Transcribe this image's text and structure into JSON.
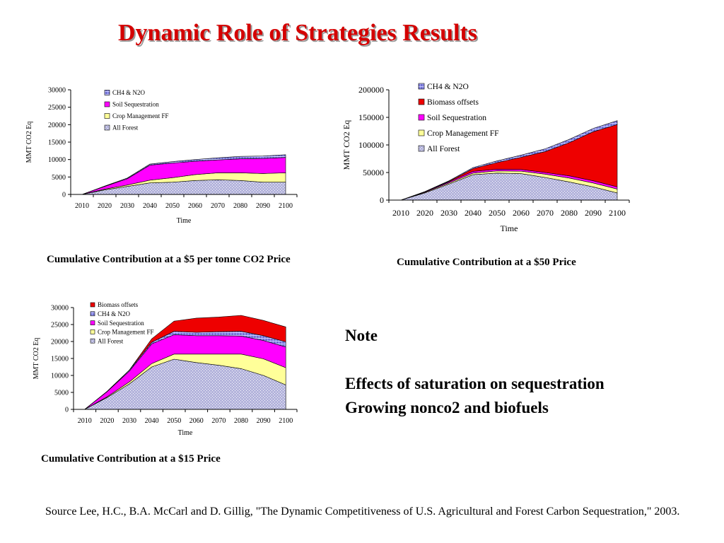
{
  "title": "Dynamic Role of Strategies Results",
  "captions": [
    "Cumulative Contribution at a $5 per tonne CO2 Price",
    "Cumulative Contribution at a $50 Price",
    "Cumulative Contribution at a $15 Price"
  ],
  "note": {
    "heading": "Note",
    "line1": "Effects of saturation on sequestration",
    "line2": "Growing nonco2 and biofuels"
  },
  "source": "Source Lee, H.C., B.A. McCarl and D. Gillig, \"The Dynamic Competitiveness of U.S. Agricultural and Forest Carbon Sequestration,\"  2003.",
  "colors": {
    "title": "#d40000",
    "all_forest": "#b4b4dc",
    "crop_management_ff": "#ffff99",
    "soil_sequestration": "#ff00ff",
    "biomass_offsets": "#ee0000",
    "ch4_n2o": "#8c8ce6"
  },
  "chart_data": [
    {
      "type": "area",
      "stacked": true,
      "xlabel": "Time",
      "ylabel": "MMT CO2 Eq",
      "x": [
        2010,
        2020,
        2030,
        2040,
        2050,
        2060,
        2070,
        2080,
        2090,
        2100
      ],
      "ylim": [
        0,
        30000
      ],
      "yticks": [
        0,
        5000,
        10000,
        15000,
        20000,
        25000,
        30000
      ],
      "yticklabels": [
        "0",
        "5000",
        "10000",
        "15000",
        "20000",
        "25000",
        "30000"
      ],
      "legend": [
        "CH4 & N2O",
        "Soil Sequestration",
        "Crop Management FF",
        "All Forest"
      ],
      "series": [
        {
          "name": "All Forest",
          "color": "#b4b4dc",
          "values": [
            0,
            1300,
            2300,
            3300,
            3500,
            4000,
            4200,
            4000,
            3500,
            3500
          ]
        },
        {
          "name": "Crop Management FF",
          "color": "#ffff99",
          "values": [
            0,
            200,
            400,
            800,
            1300,
            1700,
            2000,
            2200,
            2500,
            2700
          ]
        },
        {
          "name": "Soil Sequestration",
          "color": "#ff00ff",
          "values": [
            0,
            800,
            1800,
            4300,
            4200,
            3800,
            3700,
            4000,
            4300,
            4400
          ]
        },
        {
          "name": "CH4 & N2O",
          "color": "#8c8ce6",
          "values": [
            0,
            100,
            200,
            300,
            400,
            500,
            600,
            700,
            700,
            800
          ]
        }
      ]
    },
    {
      "type": "area",
      "stacked": true,
      "xlabel": "Time",
      "ylabel": "MMT CO2 Eq",
      "x": [
        2010,
        2020,
        2030,
        2040,
        2050,
        2060,
        2070,
        2080,
        2090,
        2100
      ],
      "ylim": [
        0,
        200000
      ],
      "yticks": [
        0,
        50000,
        100000,
        150000,
        200000
      ],
      "yticklabels": [
        "0",
        "50000",
        "100000",
        "150000",
        "200000"
      ],
      "legend": [
        "CH4 & N2O",
        "Biomass offsets",
        "Soil Sequestration",
        "Crop Management FF",
        "All Forest"
      ],
      "series": [
        {
          "name": "All Forest",
          "color": "#b4b4dc",
          "values": [
            0,
            13000,
            29000,
            46000,
            49000,
            48000,
            41000,
            33000,
            24000,
            13000
          ]
        },
        {
          "name": "Crop Management FF",
          "color": "#ffff99",
          "values": [
            0,
            1000,
            2000,
            3000,
            4000,
            4500,
            6000,
            7000,
            7000,
            7000
          ]
        },
        {
          "name": "Soil Sequestration",
          "color": "#ff00ff",
          "values": [
            0,
            1000,
            2000,
            3000,
            3000,
            3000,
            3000,
            4000,
            4000,
            4000
          ]
        },
        {
          "name": "Biomass offsets",
          "color": "#ee0000",
          "values": [
            0,
            0,
            1000,
            5000,
            12000,
            22000,
            38000,
            60000,
            89000,
            113000
          ]
        },
        {
          "name": "CH4 & N2O",
          "color": "#8c8ce6",
          "values": [
            0,
            500,
            1000,
            2000,
            3000,
            4000,
            5000,
            6000,
            6000,
            7000
          ]
        }
      ]
    },
    {
      "type": "area",
      "stacked": true,
      "xlabel": "Time",
      "ylabel": "MMT CO2 Eq",
      "x": [
        2010,
        2020,
        2030,
        2040,
        2050,
        2060,
        2070,
        2080,
        2090,
        2100
      ],
      "ylim": [
        0,
        30000
      ],
      "yticks": [
        0,
        5000,
        10000,
        15000,
        20000,
        25000,
        30000
      ],
      "yticklabels": [
        "0",
        "5000",
        "10000",
        "15000",
        "20000",
        "25000",
        "30000"
      ],
      "legend": [
        "Biomass offsets",
        "CH4 & N2O",
        "Soil Sequestration",
        "Crop Management FF",
        "All Forest"
      ],
      "series": [
        {
          "name": "All Forest",
          "color": "#b4b4dc",
          "values": [
            0,
            3500,
            7500,
            12500,
            14800,
            13800,
            13000,
            12000,
            10000,
            7200
          ]
        },
        {
          "name": "Crop Management FF",
          "color": "#ffff99",
          "values": [
            0,
            200,
            600,
            1000,
            1500,
            2500,
            3300,
            4300,
            4900,
            5100
          ]
        },
        {
          "name": "Soil Sequestration",
          "color": "#ff00ff",
          "values": [
            0,
            1500,
            3200,
            5800,
            5700,
            5400,
            5400,
            5300,
            5400,
            6100
          ]
        },
        {
          "name": "CH4 & N2O",
          "color": "#8c8ce6",
          "values": [
            0,
            100,
            300,
            500,
            1000,
            1000,
            1200,
            1400,
            1400,
            1500
          ]
        },
        {
          "name": "Biomass offsets",
          "color": "#ee0000",
          "values": [
            0,
            0,
            0,
            1000,
            3000,
            4200,
            4300,
            4700,
            4500,
            4400
          ]
        }
      ]
    }
  ]
}
